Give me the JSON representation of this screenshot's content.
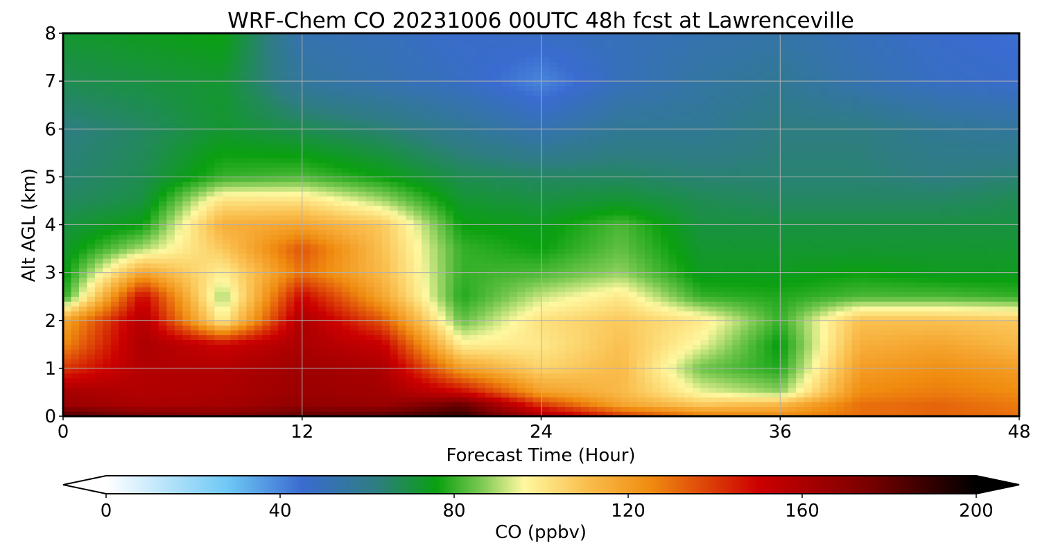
{
  "chart_data": {
    "type": "heatmap",
    "title": "WRF-Chem CO  20231006 00UTC 48h fcst at Lawrenceville",
    "xlabel": "Forecast Time (Hour)",
    "ylabel": "Alt AGL (km)",
    "xlim": [
      0,
      48
    ],
    "ylim": [
      0,
      8
    ],
    "xticks": [
      0,
      12,
      24,
      36,
      48
    ],
    "yticks": [
      0,
      1,
      2,
      3,
      4,
      5,
      6,
      7,
      8
    ],
    "grid": true,
    "x": [
      0,
      4,
      8,
      12,
      16,
      20,
      24,
      28,
      32,
      36,
      40,
      44,
      48
    ],
    "y": [
      0,
      0.25,
      0.5,
      1,
      1.5,
      2,
      2.5,
      3,
      3.5,
      4,
      4.5,
      5,
      6,
      7,
      8
    ],
    "z": [
      [
        185,
        175,
        172,
        180,
        182,
        190,
        160,
        140,
        128,
        125,
        130,
        132,
        130
      ],
      [
        165,
        160,
        162,
        168,
        165,
        178,
        140,
        118,
        108,
        112,
        130,
        132,
        128
      ],
      [
        162,
        158,
        160,
        165,
        163,
        150,
        120,
        112,
        95,
        88,
        125,
        128,
        125
      ],
      [
        140,
        158,
        158,
        164,
        160,
        120,
        105,
        112,
        85,
        78,
        120,
        124,
        120
      ],
      [
        125,
        160,
        150,
        160,
        152,
        98,
        100,
        110,
        95,
        75,
        115,
        118,
        112
      ],
      [
        118,
        158,
        98,
        160,
        135,
        84,
        102,
        108,
        100,
        80,
        110,
        110,
        108
      ],
      [
        78,
        150,
        88,
        150,
        118,
        78,
        92,
        100,
        80,
        78,
        82,
        82,
        80
      ],
      [
        74,
        118,
        98,
        130,
        112,
        80,
        82,
        88,
        74,
        74,
        76,
        74,
        74
      ],
      [
        72,
        90,
        108,
        135,
        110,
        80,
        76,
        84,
        72,
        72,
        72,
        72,
        72
      ],
      [
        70,
        76,
        115,
        118,
        108,
        76,
        74,
        82,
        70,
        70,
        70,
        70,
        70
      ],
      [
        66,
        70,
        102,
        102,
        90,
        72,
        70,
        72,
        68,
        66,
        66,
        66,
        68
      ],
      [
        64,
        68,
        80,
        82,
        76,
        68,
        66,
        66,
        64,
        64,
        64,
        62,
        64
      ],
      [
        62,
        66,
        72,
        68,
        64,
        58,
        52,
        58,
        58,
        62,
        62,
        58,
        56
      ],
      [
        68,
        70,
        72,
        56,
        52,
        48,
        40,
        50,
        55,
        58,
        52,
        48,
        46
      ],
      [
        72,
        74,
        76,
        52,
        50,
        46,
        48,
        50,
        52,
        54,
        50,
        46,
        44
      ]
    ],
    "colorbar": {
      "label": "CO  (ppbv)",
      "min": 0,
      "max": 200,
      "ticks": [
        0,
        40,
        80,
        120,
        160,
        200
      ],
      "extend": "both",
      "colorstops": [
        [
          0,
          "#ffffff"
        ],
        [
          28,
          "#6ec8f5"
        ],
        [
          45,
          "#3a6bd0"
        ],
        [
          62,
          "#2e7d82"
        ],
        [
          76,
          "#0aa010"
        ],
        [
          86,
          "#78c850"
        ],
        [
          96,
          "#fff8a0"
        ],
        [
          110,
          "#fac050"
        ],
        [
          125,
          "#f08c10"
        ],
        [
          150,
          "#cc0000"
        ],
        [
          175,
          "#7a0000"
        ],
        [
          200,
          "#000000"
        ]
      ]
    }
  }
}
